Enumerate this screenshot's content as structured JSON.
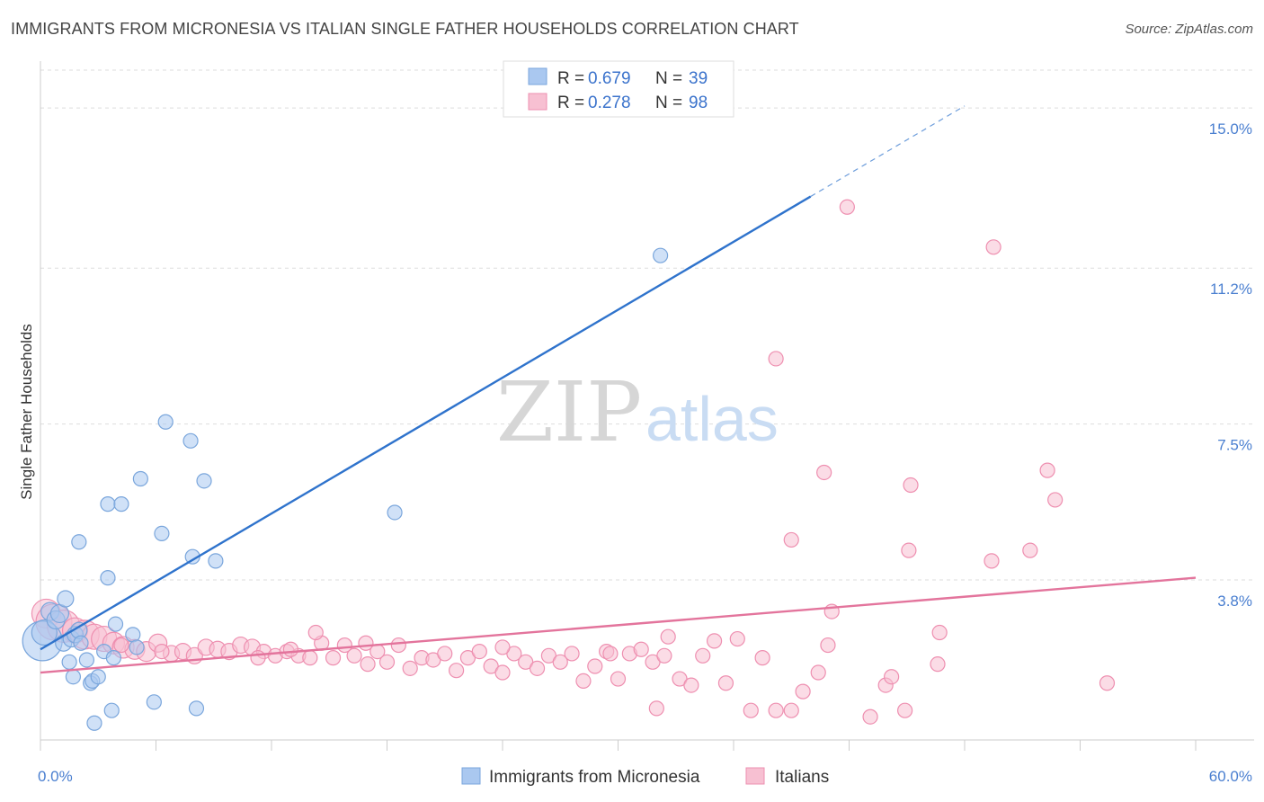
{
  "title": "IMMIGRANTS FROM MICRONESIA VS ITALIAN SINGLE FATHER HOUSEHOLDS CORRELATION CHART",
  "source": "Source: ZipAtlas.com",
  "watermark": {
    "part1": "ZIP",
    "part2": "atlas"
  },
  "colors": {
    "blue_fill": "#aac8f0",
    "blue_stroke": "#7aa6dc",
    "blue_line": "#2f73cc",
    "pink_fill": "#f7c0d2",
    "pink_stroke": "#ee8fb0",
    "pink_line": "#e3749c",
    "grid": "#dddddd",
    "tick_label": "#4a7fd0"
  },
  "chart_data": {
    "type": "scatter",
    "title": "IMMIGRANTS FROM MICRONESIA VS ITALIAN SINGLE FATHER HOUSEHOLDS CORRELATION CHART",
    "xlabel": "",
    "ylabel": "Single Father Households",
    "xlim": [
      0,
      60
    ],
    "ylim": [
      0,
      15.9
    ],
    "x_tick_labels": [
      {
        "value": 0,
        "label": "0.0%"
      },
      {
        "value": 60,
        "label": "60.0%"
      }
    ],
    "y_tick_labels": [
      {
        "value": 3.8,
        "label": "3.8%"
      },
      {
        "value": 7.5,
        "label": "7.5%"
      },
      {
        "value": 11.2,
        "label": "11.2%"
      },
      {
        "value": 15.0,
        "label": "15.0%"
      }
    ],
    "legend": [
      {
        "series": "Immigrants from Micronesia",
        "r_label": "R =",
        "r_value": "0.679",
        "n_label": "N =",
        "n_value": "39"
      },
      {
        "series": "Italians",
        "r_label": "R =",
        "r_value": "0.278",
        "n_label": "N =",
        "n_value": "98"
      }
    ],
    "series": [
      {
        "name": "Immigrants from Micronesia",
        "color": "blue",
        "trendline": {
          "x0": 0,
          "y0": 2.15,
          "x1": 40,
          "y1": 12.9,
          "dashed_to_x": 48,
          "dashed_to_y": 15.05
        },
        "points": [
          [
            0.1,
            2.35,
            22
          ],
          [
            0.2,
            2.55,
            14
          ],
          [
            0.5,
            3.05,
            10
          ],
          [
            0.8,
            2.85,
            10
          ],
          [
            1.0,
            3.0,
            10
          ],
          [
            1.2,
            2.3,
            9
          ],
          [
            1.3,
            3.35,
            9
          ],
          [
            1.6,
            2.4,
            9
          ],
          [
            1.8,
            2.5,
            9
          ],
          [
            2.0,
            2.6,
            9
          ],
          [
            2.1,
            2.3,
            8
          ],
          [
            1.7,
            1.5,
            8
          ],
          [
            2.4,
            1.9,
            8
          ],
          [
            2.6,
            1.35,
            8
          ],
          [
            2.7,
            1.4,
            8
          ],
          [
            3.0,
            1.5,
            8
          ],
          [
            2.8,
            0.4,
            8
          ],
          [
            3.3,
            2.1,
            8
          ],
          [
            3.8,
            1.95,
            8
          ],
          [
            3.9,
            2.75,
            8
          ],
          [
            4.8,
            2.5,
            8
          ],
          [
            5.0,
            2.2,
            8
          ],
          [
            3.7,
            0.7,
            8
          ],
          [
            5.9,
            0.9,
            8
          ],
          [
            8.1,
            0.75,
            8
          ],
          [
            2.0,
            4.7,
            8
          ],
          [
            3.5,
            3.85,
            8
          ],
          [
            3.5,
            5.6,
            8
          ],
          [
            4.2,
            5.6,
            8
          ],
          [
            5.2,
            6.2,
            8
          ],
          [
            6.3,
            4.9,
            8
          ],
          [
            7.9,
            4.35,
            8
          ],
          [
            9.1,
            4.25,
            8
          ],
          [
            8.5,
            6.15,
            8
          ],
          [
            7.8,
            7.1,
            8
          ],
          [
            6.5,
            7.55,
            8
          ],
          [
            18.4,
            5.4,
            8
          ],
          [
            32.2,
            11.5,
            8
          ],
          [
            1.5,
            1.85,
            8
          ]
        ]
      },
      {
        "name": "Italians",
        "color": "pink",
        "trendline": {
          "x0": 0,
          "y0": 1.6,
          "x1": 60,
          "y1": 3.85
        },
        "points": [
          [
            0.3,
            3.0,
            16
          ],
          [
            0.7,
            2.8,
            20
          ],
          [
            1.2,
            2.7,
            18
          ],
          [
            1.8,
            2.6,
            14
          ],
          [
            2.3,
            2.5,
            16
          ],
          [
            2.8,
            2.45,
            14
          ],
          [
            3.3,
            2.4,
            14
          ],
          [
            3.8,
            2.3,
            12
          ],
          [
            4.3,
            2.2,
            12
          ],
          [
            4.9,
            2.15,
            11
          ],
          [
            5.5,
            2.1,
            11
          ],
          [
            6.1,
            2.3,
            10
          ],
          [
            6.8,
            2.05,
            9
          ],
          [
            7.4,
            2.1,
            9
          ],
          [
            8.0,
            2.0,
            9
          ],
          [
            8.6,
            2.2,
            9
          ],
          [
            9.2,
            2.15,
            9
          ],
          [
            9.8,
            2.1,
            9
          ],
          [
            10.4,
            2.25,
            9
          ],
          [
            11.0,
            2.2,
            9
          ],
          [
            11.6,
            2.1,
            8
          ],
          [
            12.2,
            2.0,
            8
          ],
          [
            12.8,
            2.1,
            8
          ],
          [
            13.4,
            2.0,
            8
          ],
          [
            14.0,
            1.95,
            8
          ],
          [
            14.6,
            2.3,
            8
          ],
          [
            14.3,
            2.55,
            8
          ],
          [
            15.2,
            1.95,
            8
          ],
          [
            15.8,
            2.25,
            8
          ],
          [
            16.3,
            2.0,
            8
          ],
          [
            16.9,
            2.3,
            8
          ],
          [
            17.5,
            2.1,
            8
          ],
          [
            18.0,
            1.85,
            8
          ],
          [
            18.6,
            2.25,
            8
          ],
          [
            19.2,
            1.7,
            8
          ],
          [
            19.8,
            1.95,
            8
          ],
          [
            20.4,
            1.9,
            8
          ],
          [
            21.0,
            2.05,
            8
          ],
          [
            21.6,
            1.65,
            8
          ],
          [
            22.2,
            1.95,
            8
          ],
          [
            22.8,
            2.1,
            8
          ],
          [
            23.4,
            1.75,
            8
          ],
          [
            24.0,
            1.6,
            8
          ],
          [
            24.6,
            2.05,
            8
          ],
          [
            25.2,
            1.85,
            8
          ],
          [
            25.8,
            1.7,
            8
          ],
          [
            26.4,
            2.0,
            8
          ],
          [
            27.0,
            1.85,
            8
          ],
          [
            27.6,
            2.05,
            8
          ],
          [
            28.2,
            1.4,
            8
          ],
          [
            28.8,
            1.75,
            8
          ],
          [
            29.4,
            2.1,
            8
          ],
          [
            30.0,
            1.45,
            8
          ],
          [
            30.6,
            2.05,
            8
          ],
          [
            31.2,
            2.15,
            8
          ],
          [
            31.8,
            1.85,
            8
          ],
          [
            32.4,
            2.0,
            8
          ],
          [
            32.6,
            2.45,
            8
          ],
          [
            33.2,
            1.45,
            8
          ],
          [
            33.8,
            1.3,
            8
          ],
          [
            34.4,
            2.0,
            8
          ],
          [
            35.0,
            2.35,
            8
          ],
          [
            35.6,
            1.35,
            8
          ],
          [
            36.2,
            2.4,
            8
          ],
          [
            36.9,
            0.7,
            8
          ],
          [
            37.5,
            1.95,
            8
          ],
          [
            38.2,
            0.7,
            8
          ],
          [
            39.0,
            0.7,
            8
          ],
          [
            39.6,
            1.15,
            8
          ],
          [
            40.4,
            1.6,
            8
          ],
          [
            40.9,
            2.25,
            8
          ],
          [
            32.0,
            0.75,
            8
          ],
          [
            43.1,
            0.55,
            8
          ],
          [
            43.9,
            1.3,
            8
          ],
          [
            44.2,
            1.5,
            8
          ],
          [
            44.9,
            0.7,
            8
          ],
          [
            46.6,
            1.8,
            8
          ],
          [
            46.7,
            2.55,
            8
          ],
          [
            41.1,
            3.05,
            8
          ],
          [
            38.2,
            9.05,
            8
          ],
          [
            40.7,
            6.35,
            8
          ],
          [
            39.0,
            4.75,
            8
          ],
          [
            45.2,
            6.05,
            8
          ],
          [
            45.1,
            4.5,
            8
          ],
          [
            49.4,
            4.25,
            8
          ],
          [
            52.3,
            6.4,
            8
          ],
          [
            51.4,
            4.5,
            8
          ],
          [
            52.7,
            5.7,
            8
          ],
          [
            55.4,
            1.35,
            8
          ],
          [
            41.9,
            12.65,
            8
          ],
          [
            49.5,
            11.7,
            8
          ],
          [
            11.3,
            1.95,
            8
          ],
          [
            13.0,
            2.15,
            8
          ],
          [
            4.2,
            2.25,
            8
          ],
          [
            6.3,
            2.1,
            8
          ],
          [
            29.6,
            2.05,
            8
          ],
          [
            24.0,
            2.2,
            8
          ],
          [
            17.0,
            1.8,
            8
          ]
        ]
      }
    ],
    "bottom_legend": [
      "Immigrants from Micronesia",
      "Italians"
    ]
  }
}
